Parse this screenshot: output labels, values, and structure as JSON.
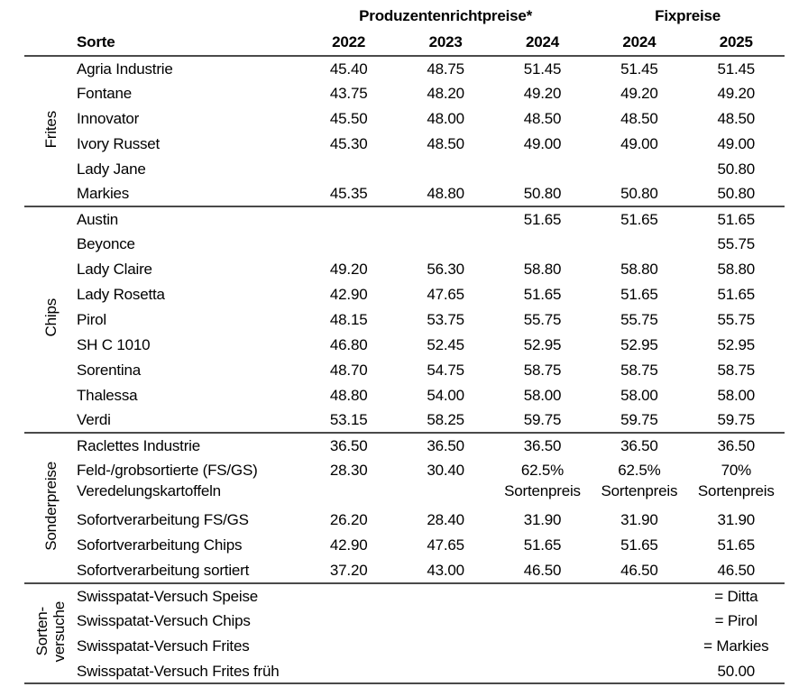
{
  "table": {
    "header": {
      "group1": "Produzentenrichtpreise*",
      "group2": "Fixpreise",
      "sorte": "Sorte",
      "years": [
        "2022",
        "2023",
        "2024",
        "2024",
        "2025"
      ]
    },
    "groups": [
      {
        "label": "Frites",
        "rows": [
          {
            "name": "Agria Industrie",
            "values": [
              "45.40",
              "48.75",
              "51.45",
              "51.45",
              "51.45"
            ]
          },
          {
            "name": "Fontane",
            "values": [
              "43.75",
              "48.20",
              "49.20",
              "49.20",
              "49.20"
            ]
          },
          {
            "name": "Innovator",
            "values": [
              "45.50",
              "48.00",
              "48.50",
              "48.50",
              "48.50"
            ]
          },
          {
            "name": "Ivory Russet",
            "values": [
              "45.30",
              "48.50",
              "49.00",
              "49.00",
              "49.00"
            ]
          },
          {
            "name": "Lady Jane",
            "values": [
              "",
              "",
              "",
              "",
              "50.80"
            ]
          },
          {
            "name": "Markies",
            "values": [
              "45.35",
              "48.80",
              "50.80",
              "50.80",
              "50.80"
            ]
          }
        ]
      },
      {
        "label": "Chips",
        "rows": [
          {
            "name": "Austin",
            "values": [
              "",
              "",
              "51.65",
              "51.65",
              "51.65"
            ]
          },
          {
            "name": "Beyonce",
            "values": [
              "",
              "",
              "",
              "",
              "55.75"
            ]
          },
          {
            "name": "Lady Claire",
            "values": [
              "49.20",
              "56.30",
              "58.80",
              "58.80",
              "58.80"
            ]
          },
          {
            "name": "Lady Rosetta",
            "values": [
              "42.90",
              "47.65",
              "51.65",
              "51.65",
              "51.65"
            ]
          },
          {
            "name": "Pirol",
            "values": [
              "48.15",
              "53.75",
              "55.75",
              "55.75",
              "55.75"
            ]
          },
          {
            "name": "SH C 1010",
            "values": [
              "46.80",
              "52.45",
              "52.95",
              "52.95",
              "52.95"
            ]
          },
          {
            "name": "Sorentina",
            "values": [
              "48.70",
              "54.75",
              "58.75",
              "58.75",
              "58.75"
            ]
          },
          {
            "name": "Thalessa",
            "values": [
              "48.80",
              "54.00",
              "58.00",
              "58.00",
              "58.00"
            ]
          },
          {
            "name": "Verdi",
            "values": [
              "53.15",
              "58.25",
              "59.75",
              "59.75",
              "59.75"
            ]
          }
        ]
      },
      {
        "label": "Sonderpreise",
        "rows": [
          {
            "name": "Raclettes Industrie",
            "values": [
              "36.50",
              "36.50",
              "36.50",
              "36.50",
              "36.50"
            ]
          },
          {
            "name": "Feld-/grobsortierte (FS/GS)\nVeredelungskartoffeln",
            "multiline": true,
            "values": [
              "28.30",
              "30.40",
              "62.5%\nSortenpreis",
              "62.5%\nSortenpreis",
              "70%\nSortenpreis"
            ]
          },
          {
            "name": "Sofortverarbeitung FS/GS",
            "values": [
              "26.20",
              "28.40",
              "31.90",
              "31.90",
              "31.90"
            ]
          },
          {
            "name": "Sofortverarbeitung Chips",
            "values": [
              "42.90",
              "47.65",
              "51.65",
              "51.65",
              "51.65"
            ]
          },
          {
            "name": "Sofortverarbeitung sortiert",
            "values": [
              "37.20",
              "43.00",
              "46.50",
              "46.50",
              "46.50"
            ]
          }
        ]
      },
      {
        "label": "Sorten-\nversuche",
        "rows": [
          {
            "name": "Swisspatat-Versuch Speise",
            "values": [
              "",
              "",
              "",
              "",
              "= Ditta"
            ]
          },
          {
            "name": "Swisspatat-Versuch Chips",
            "values": [
              "",
              "",
              "",
              "",
              "= Pirol"
            ]
          },
          {
            "name": "Swisspatat-Versuch Frites",
            "values": [
              "",
              "",
              "",
              "",
              "= Markies"
            ]
          },
          {
            "name": "Swisspatat-Versuch Frites früh",
            "values": [
              "",
              "",
              "",
              "",
              "50.00"
            ]
          }
        ]
      }
    ]
  },
  "colors": {
    "text": "#000000",
    "rule": "#4a4a4a"
  }
}
